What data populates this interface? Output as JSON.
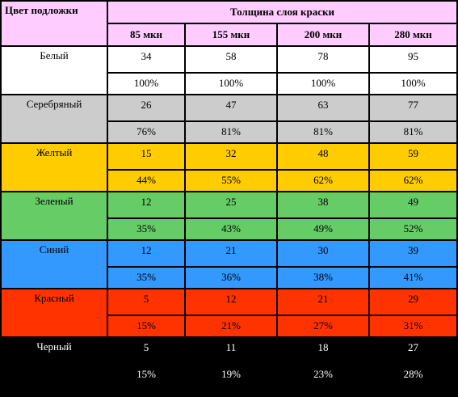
{
  "header": {
    "corner_label": "Цвет подложки",
    "group_label": "Толщина слоя краски",
    "columns": [
      "85 мкн",
      "155 мкн",
      "200 мкн",
      "280 мкн"
    ]
  },
  "rows": [
    {
      "name": "Белый",
      "color": "#ffffff",
      "text_color": "#000000",
      "values": [
        "34",
        "58",
        "78",
        "95"
      ],
      "percents": [
        "100%",
        "100%",
        "100%",
        "100%"
      ]
    },
    {
      "name": "Серебряный",
      "color": "#cccccc",
      "text_color": "#000000",
      "values": [
        "26",
        "47",
        "63",
        "77"
      ],
      "percents": [
        "76%",
        "81%",
        "81%",
        "81%"
      ]
    },
    {
      "name": "Желтый",
      "color": "#ffcc00",
      "text_color": "#000000",
      "values": [
        "15",
        "32",
        "48",
        "59"
      ],
      "percents": [
        "44%",
        "55%",
        "62%",
        "62%"
      ]
    },
    {
      "name": "Зеленый",
      "color": "#66cc66",
      "text_color": "#000000",
      "values": [
        "12",
        "25",
        "38",
        "49"
      ],
      "percents": [
        "35%",
        "43%",
        "49%",
        "52%"
      ]
    },
    {
      "name": "Синий",
      "color": "#3399ff",
      "text_color": "#000000",
      "values": [
        "12",
        "21",
        "30",
        "39"
      ],
      "percents": [
        "35%",
        "36%",
        "38%",
        "41%"
      ]
    },
    {
      "name": "Красный",
      "color": "#ff3300",
      "text_color": "#000000",
      "values": [
        "5",
        "12",
        "21",
        "29"
      ],
      "percents": [
        "15%",
        "21%",
        "27%",
        "31%"
      ]
    },
    {
      "name": "Черный",
      "color": "#000000",
      "text_color": "#ffffff",
      "values": [
        "5",
        "11",
        "18",
        "27"
      ],
      "percents": [
        "15%",
        "19%",
        "23%",
        "28%"
      ]
    }
  ]
}
